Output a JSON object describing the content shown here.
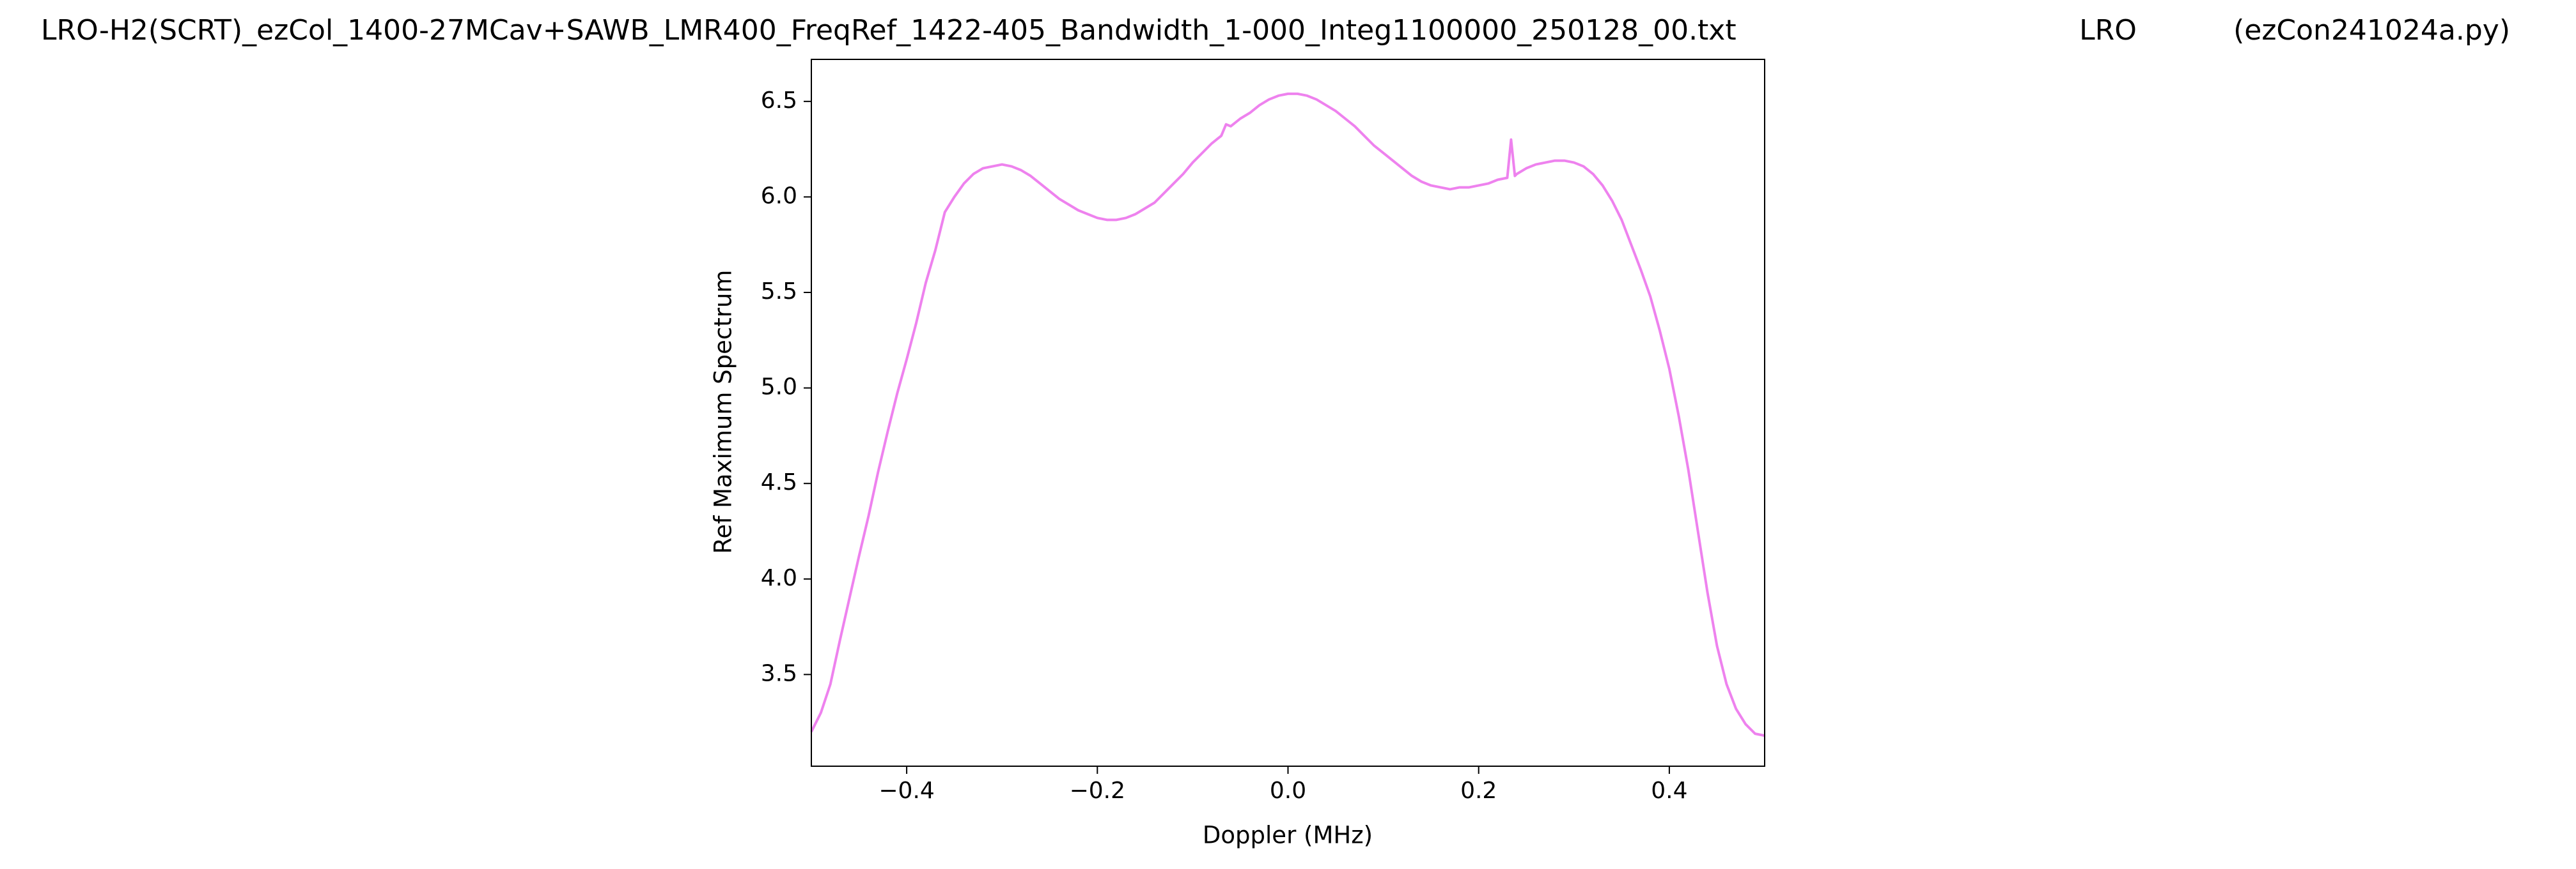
{
  "chart_data": {
    "type": "line",
    "titles": [
      "LRO-H2(SCRT)_ezCol_1400-27MCav+SAWB_LMR400_FreqRef_1422-405_Bandwidth_1-000_Integ1100000_250128_00.txt",
      "LRO",
      "(ezCon241024a.py)"
    ],
    "x_label": "Doppler (MHz)",
    "y_label": "Ref Maximum Spectrum",
    "x": [
      -0.5,
      -0.49,
      -0.48,
      -0.47,
      -0.46,
      -0.45,
      -0.44,
      -0.43,
      -0.42,
      -0.41,
      -0.4,
      -0.39,
      -0.38,
      -0.37,
      -0.36,
      -0.35,
      -0.34,
      -0.33,
      -0.32,
      -0.31,
      -0.3,
      -0.29,
      -0.28,
      -0.27,
      -0.26,
      -0.25,
      -0.24,
      -0.23,
      -0.22,
      -0.21,
      -0.2,
      -0.19,
      -0.18,
      -0.17,
      -0.16,
      -0.15,
      -0.14,
      -0.13,
      -0.12,
      -0.11,
      -0.1,
      -0.09,
      -0.08,
      -0.07,
      -0.065,
      -0.06,
      -0.05,
      -0.04,
      -0.03,
      -0.02,
      -0.01,
      0,
      0.01,
      0.02,
      0.03,
      0.04,
      0.05,
      0.06,
      0.07,
      0.08,
      0.09,
      0.1,
      0.11,
      0.12,
      0.13,
      0.14,
      0.15,
      0.16,
      0.17,
      0.18,
      0.19,
      0.2,
      0.21,
      0.22,
      0.23,
      0.234,
      0.238,
      0.24,
      0.25,
      0.26,
      0.27,
      0.28,
      0.29,
      0.3,
      0.31,
      0.32,
      0.33,
      0.34,
      0.35,
      0.36,
      0.37,
      0.38,
      0.39,
      0.4,
      0.41,
      0.42,
      0.43,
      0.44,
      0.45,
      0.46,
      0.47,
      0.48,
      0.49,
      0.5
    ],
    "series": [
      {
        "name": "Ref Maximum Spectrum",
        "color": "#ee82ee",
        "values": [
          3.2,
          3.3,
          3.45,
          3.68,
          3.9,
          4.12,
          4.33,
          4.56,
          4.77,
          4.97,
          5.15,
          5.34,
          5.55,
          5.72,
          5.92,
          6.0,
          6.07,
          6.12,
          6.15,
          6.16,
          6.17,
          6.16,
          6.14,
          6.11,
          6.07,
          6.03,
          5.99,
          5.96,
          5.93,
          5.91,
          5.89,
          5.88,
          5.88,
          5.89,
          5.91,
          5.94,
          5.97,
          6.02,
          6.07,
          6.12,
          6.18,
          6.23,
          6.28,
          6.32,
          6.38,
          6.37,
          6.41,
          6.44,
          6.48,
          6.51,
          6.53,
          6.54,
          6.54,
          6.53,
          6.51,
          6.48,
          6.45,
          6.41,
          6.37,
          6.32,
          6.27,
          6.23,
          6.19,
          6.15,
          6.11,
          6.08,
          6.06,
          6.05,
          6.04,
          6.05,
          6.05,
          6.06,
          6.07,
          6.09,
          6.1,
          6.3,
          6.11,
          6.12,
          6.15,
          6.17,
          6.18,
          6.19,
          6.19,
          6.18,
          6.16,
          6.12,
          6.06,
          5.98,
          5.88,
          5.75,
          5.62,
          5.48,
          5.3,
          5.1,
          4.85,
          4.57,
          4.25,
          3.93,
          3.65,
          3.45,
          3.32,
          3.24,
          3.19,
          3.18
        ]
      }
    ],
    "xlim": [
      -0.5,
      0.5
    ],
    "ylim": [
      3.02,
      6.72
    ],
    "xticks": [
      {
        "value": -0.4,
        "label": "−0.4"
      },
      {
        "value": -0.2,
        "label": "−0.2"
      },
      {
        "value": 0,
        "label": "0.0"
      },
      0.2,
      0.4
    ],
    "yticks": [
      3.5,
      {
        "value": 4,
        "label": "4.0"
      },
      4.5,
      {
        "value": 5,
        "label": "5.0"
      },
      5.5,
      {
        "value": 6,
        "label": "6.0"
      },
      6.5
    ]
  }
}
